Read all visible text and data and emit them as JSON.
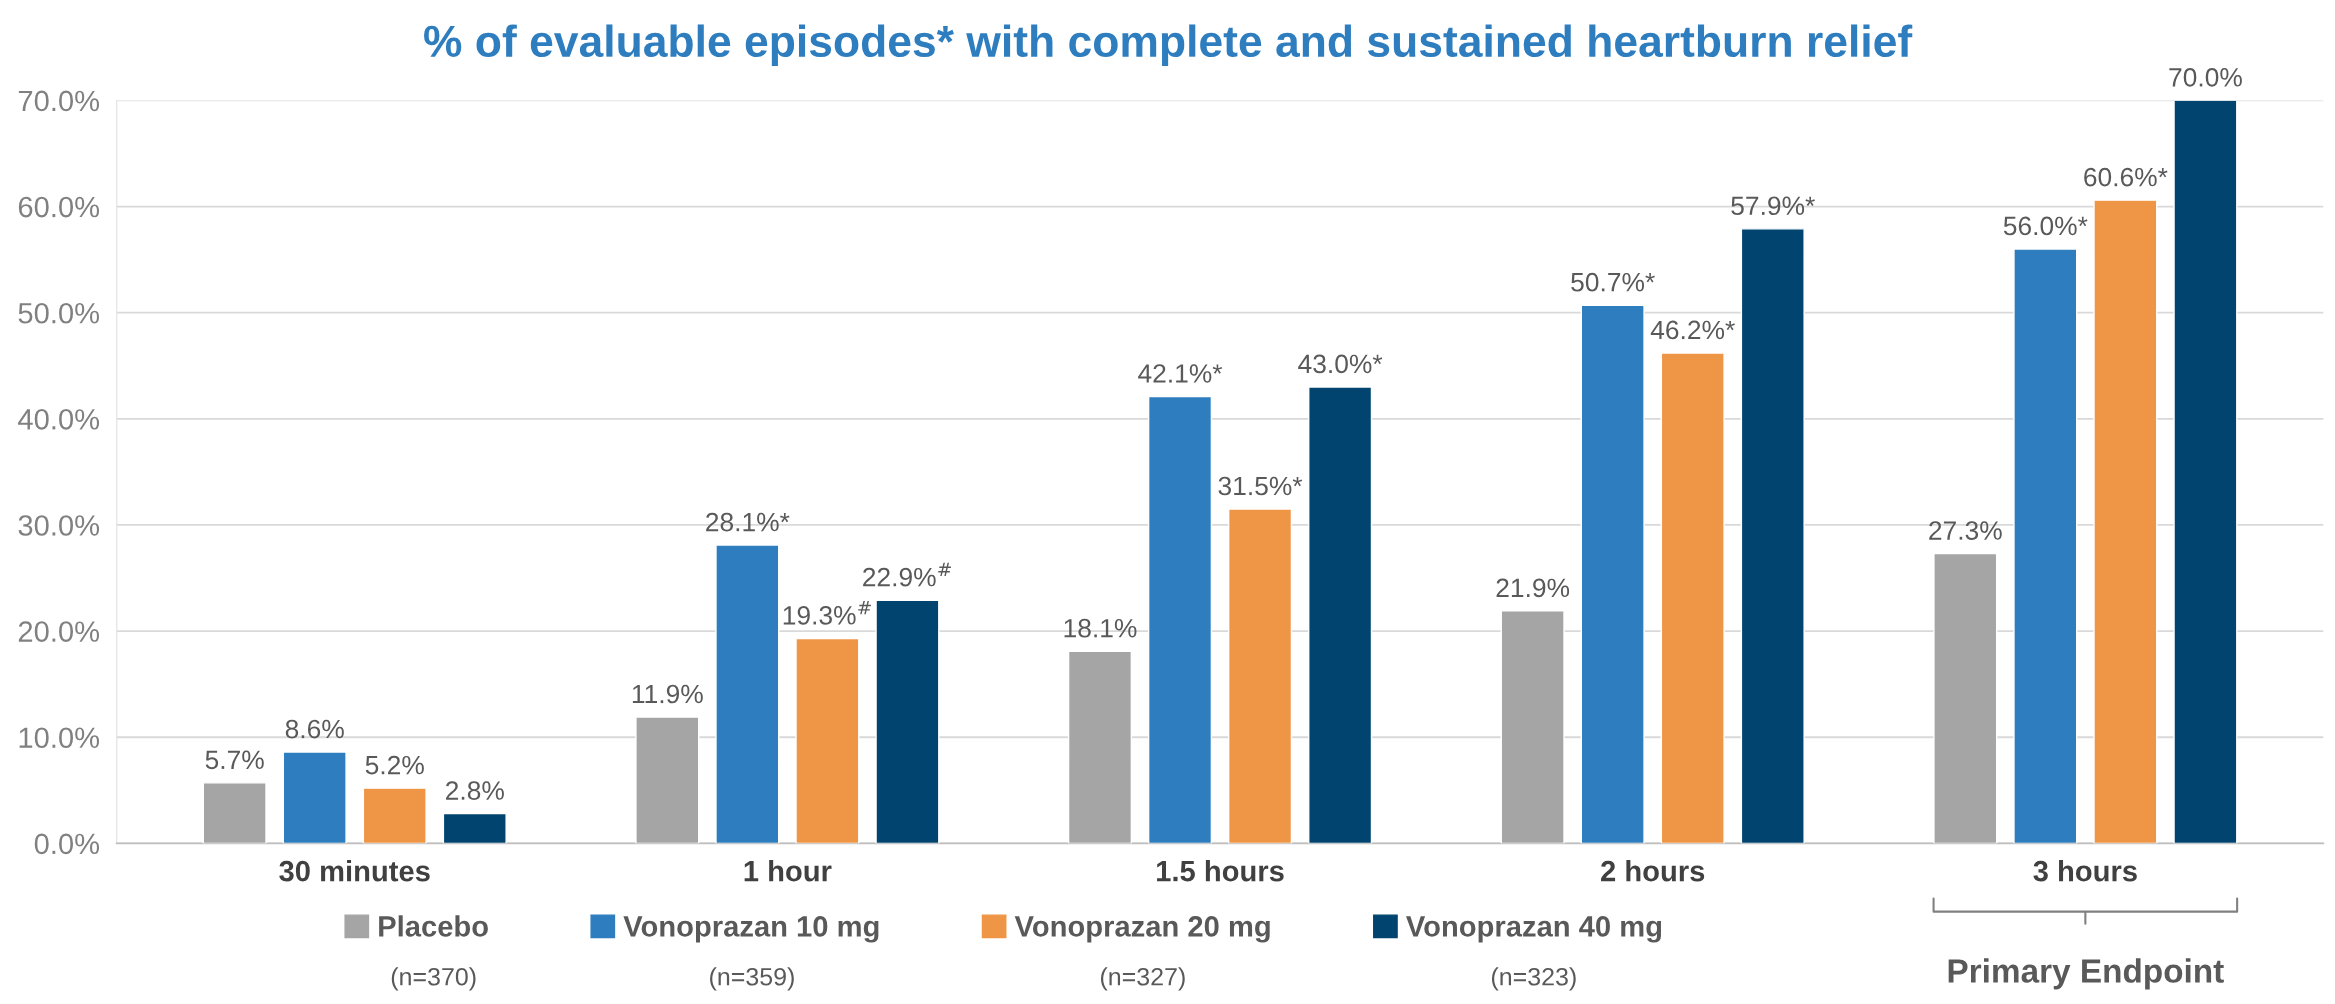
{
  "chart_data": {
    "type": "bar",
    "title": "% of evaluable episodes* with complete and sustained heartburn relief",
    "categories": [
      "30 minutes",
      "1 hour",
      "1.5 hours",
      "2 hours",
      "3 hours"
    ],
    "series": [
      {
        "name": "Placebo",
        "color": "#a5a5a6",
        "values": [
          5.7,
          11.9,
          18.1,
          21.9,
          27.3
        ],
        "value_labels": [
          "5.7%",
          "11.9%",
          "18.1%",
          "21.9%",
          "27.3%"
        ]
      },
      {
        "name": "Vonoprazan 10 mg",
        "color": "#2e7dbf",
        "values": [
          8.6,
          28.1,
          42.1,
          50.7,
          56.0
        ],
        "value_labels": [
          "8.6%",
          "28.1%*",
          "42.1%*",
          "50.7%*",
          "56.0%*"
        ]
      },
      {
        "name": "Vonoprazan 20 mg",
        "color": "#ef9546",
        "values": [
          5.2,
          19.3,
          31.5,
          46.2,
          60.6
        ],
        "value_labels": [
          "5.2%",
          "19.3%$^{#}$",
          "31.5%*",
          "46.2%*",
          "60.6%*"
        ]
      },
      {
        "name": "Vonoprazan 40 mg",
        "color": "#00446f",
        "values": [
          2.8,
          22.9,
          43.0,
          57.9,
          70.0
        ],
        "value_labels": [
          "2.8%",
          "22.9%$^{#}$",
          "43.0%*",
          "57.9%*",
          "70.0%"
        ]
      }
    ],
    "ylim": [
      0,
      70
    ],
    "yticks": [
      {
        "value": 0,
        "label": "0.0%"
      },
      {
        "value": 10,
        "label": "10.0%"
      },
      {
        "value": 20,
        "label": "20.0%"
      },
      {
        "value": 30,
        "label": "30.0%"
      },
      {
        "value": 40,
        "label": "40.0%"
      },
      {
        "value": 50,
        "label": "50.0%"
      },
      {
        "value": 60,
        "label": "60.0%"
      },
      {
        "value": 70,
        "label": "70.0%"
      }
    ],
    "grid": "y",
    "legend": "bottom",
    "annotations": [
      "(n=370)",
      "(n=359)",
      "(n=327)",
      "(n=323)",
      "Primary Endpoint"
    ]
  }
}
